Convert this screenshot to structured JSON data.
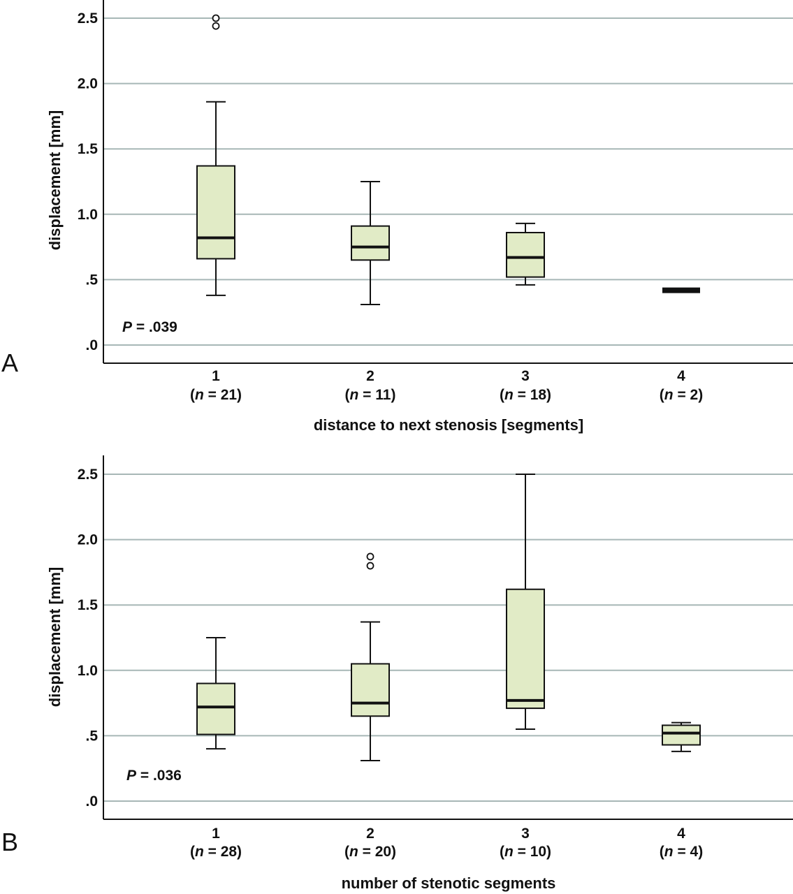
{
  "colors": {
    "grid": "#a7b7b6",
    "box_fill": "#e1ebc6",
    "stroke": "#111111"
  },
  "chart_data": [
    {
      "type": "box",
      "panel": "A",
      "xlabel": "distance to next stenosis [segments]",
      "ylabel": "displacement [mm]",
      "ylim": [
        -0.13,
        2.65
      ],
      "yticks": [
        ".0",
        ".5",
        "1.0",
        "1.5",
        "2.0",
        "2.5"
      ],
      "grid": true,
      "p_label": "P",
      "p_value": " = .039",
      "categories": [
        {
          "label": "1",
          "n_var": "n",
          "n_text": " = 21)",
          "min": 0.38,
          "q1": 0.66,
          "median": 0.82,
          "q3": 1.37,
          "max": 1.86,
          "outliers": [
            2.44,
            2.5
          ]
        },
        {
          "label": "2",
          "n_var": "n",
          "n_text": " = 11)",
          "min": 0.31,
          "q1": 0.65,
          "median": 0.75,
          "q3": 0.91,
          "max": 1.25,
          "outliers": []
        },
        {
          "label": "3",
          "n_var": "n",
          "n_text": " = 18)",
          "min": 0.46,
          "q1": 0.52,
          "median": 0.67,
          "q3": 0.86,
          "max": 0.93,
          "outliers": []
        },
        {
          "label": "4",
          "n_var": "n",
          "n_text": " = 2)",
          "min": 0.4,
          "q1": 0.4,
          "median": 0.42,
          "q3": 0.44,
          "max": 0.44,
          "outliers": []
        }
      ]
    },
    {
      "type": "box",
      "panel": "B",
      "xlabel": "number of stenotic segments",
      "ylabel": "displacement [mm]",
      "ylim": [
        -0.13,
        2.65
      ],
      "yticks": [
        ".0",
        ".5",
        "1.0",
        "1.5",
        "2.0",
        "2.5"
      ],
      "grid": true,
      "p_label": "P",
      "p_value": " = .036",
      "categories": [
        {
          "label": "1",
          "n_var": "n",
          "n_text": " = 28)",
          "min": 0.4,
          "q1": 0.51,
          "median": 0.72,
          "q3": 0.9,
          "max": 1.25,
          "outliers": []
        },
        {
          "label": "2",
          "n_var": "n",
          "n_text": " = 20)",
          "min": 0.31,
          "q1": 0.65,
          "median": 0.75,
          "q3": 1.05,
          "max": 1.37,
          "outliers": [
            1.8,
            1.87
          ]
        },
        {
          "label": "3",
          "n_var": "n",
          "n_text": " = 10)",
          "min": 0.55,
          "q1": 0.71,
          "median": 0.77,
          "q3": 1.62,
          "max": 2.5,
          "outliers": []
        },
        {
          "label": "4",
          "n_var": "n",
          "n_text": " = 4)",
          "min": 0.38,
          "q1": 0.43,
          "median": 0.52,
          "q3": 0.58,
          "max": 0.6,
          "outliers": []
        }
      ]
    }
  ]
}
